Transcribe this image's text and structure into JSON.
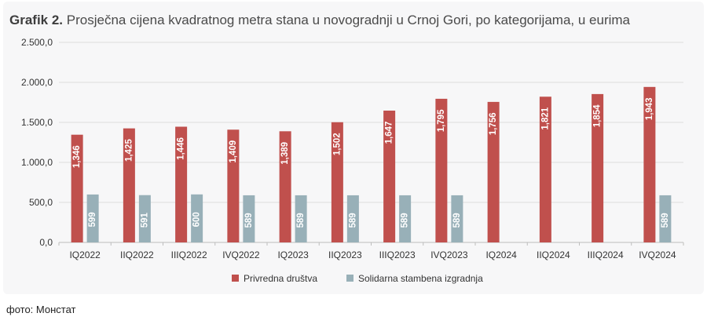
{
  "caption": "фото: Монстат",
  "chart_data": {
    "type": "bar",
    "title_label": "Grafik 2.",
    "title": "Prosječna cijena kvadratnog metra stana u novogradnji u Crnoj Gori, po kategorijama, u eurima",
    "xlabel": "",
    "ylabel": "",
    "ylim": [
      0,
      2500
    ],
    "yticks": [
      "0,0",
      "500,0",
      "1.000,0",
      "1.500,0",
      "2.000,0",
      "2.500,0"
    ],
    "grid": true,
    "legend_position": "bottom",
    "categories": [
      "IQ2022",
      "IIQ2022",
      "IIIQ2022",
      "IVQ2022",
      "IQ2023",
      "IIQ2023",
      "IIIQ2023",
      "IVQ2023",
      "IQ2024",
      "IIQ2024",
      "IIIQ2024",
      "IVQ2024"
    ],
    "series": [
      {
        "name": "Privredna društva",
        "color": "#c0504d",
        "values": [
          1346,
          1425,
          1446,
          1409,
          1389,
          1502,
          1647,
          1795,
          1756,
          1821,
          1854,
          1943
        ],
        "labels": [
          "1,346",
          "1,425",
          "1,446",
          "1,409",
          "1,389",
          "1,502",
          "1,647",
          "1,795",
          "1,756",
          "1,821",
          "1,854",
          "1,943"
        ]
      },
      {
        "name": "Solidarna stambena izgradnja",
        "color": "#98b0b8",
        "values": [
          599,
          591,
          600,
          589,
          589,
          589,
          589,
          589,
          null,
          null,
          null,
          589
        ],
        "labels": [
          "599",
          "591",
          "600",
          "589",
          "589",
          "589",
          "589",
          "589",
          null,
          null,
          null,
          "589"
        ]
      }
    ]
  }
}
